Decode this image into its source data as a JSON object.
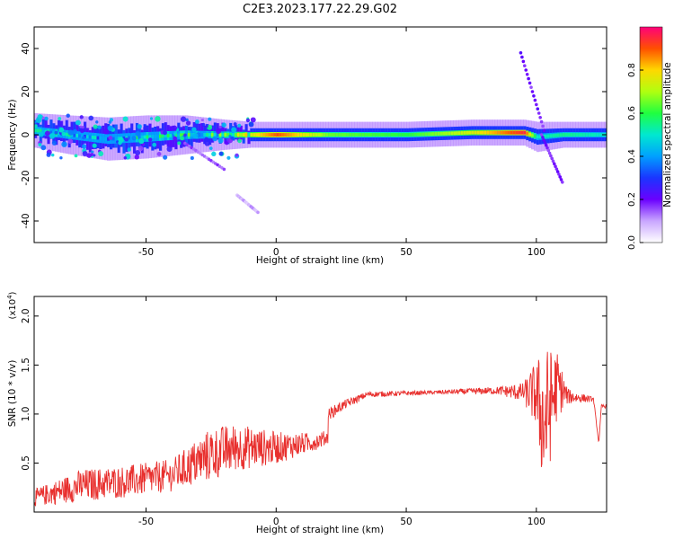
{
  "figure_title": "C2E3.2023.177.22.29.G02",
  "chart_data": [
    {
      "type": "heatmap",
      "xlabel": "Height of straight line (km)",
      "ylabel": "Frequency (Hz)",
      "xlim": [
        -93,
        127
      ],
      "ylim": [
        -50,
        50
      ],
      "xticks": [
        -50,
        0,
        50,
        100
      ],
      "xtick_labels": [
        "-50",
        "0",
        "50",
        "100"
      ],
      "yticks": [
        -40,
        -20,
        0,
        20,
        40
      ],
      "ytick_labels": [
        "-40",
        "-20",
        "0",
        "20",
        "40"
      ],
      "colorbar": {
        "label": "Normalized spectral amplitude",
        "range": [
          0,
          1
        ],
        "ticks": [
          0.0,
          0.2,
          0.4,
          0.6,
          0.8
        ],
        "tick_labels": [
          "0.0",
          "0.2",
          "0.4",
          "0.6",
          "0.8"
        ]
      },
      "band": [
        {
          "x": -93,
          "halfwidth": 7,
          "center": 2,
          "amp": 0.55
        },
        {
          "x": -80,
          "halfwidth": 8,
          "center": 0,
          "amp": 0.5
        },
        {
          "x": -65,
          "halfwidth": 9,
          "center": -2,
          "amp": 0.45
        },
        {
          "x": -50,
          "halfwidth": 9,
          "center": -1,
          "amp": 0.5
        },
        {
          "x": -35,
          "halfwidth": 8,
          "center": 0,
          "amp": 0.55
        },
        {
          "x": -20,
          "halfwidth": 6,
          "center": 0,
          "amp": 0.6
        },
        {
          "x": -10,
          "halfwidth": 5,
          "center": 0,
          "amp": 0.75
        },
        {
          "x": 0,
          "halfwidth": 5,
          "center": 0,
          "amp": 0.9
        },
        {
          "x": 20,
          "halfwidth": 5,
          "center": 0,
          "amp": 0.65
        },
        {
          "x": 50,
          "halfwidth": 5,
          "center": 0,
          "amp": 0.6
        },
        {
          "x": 75,
          "halfwidth": 5,
          "center": 1,
          "amp": 0.75
        },
        {
          "x": 95,
          "halfwidth": 5,
          "center": 1,
          "amp": 0.95
        },
        {
          "x": 100,
          "halfwidth": 6,
          "center": -1,
          "amp": 0.5
        },
        {
          "x": 110,
          "halfwidth": 5,
          "center": 0,
          "amp": 0.55
        },
        {
          "x": 127,
          "halfwidth": 5,
          "center": 0,
          "amp": 0.5
        }
      ],
      "streaks": [
        {
          "x1": -35,
          "y1": -4,
          "x2": -20,
          "y2": -16,
          "amp": 0.1
        },
        {
          "x1": -15,
          "y1": -28,
          "x2": -7,
          "y2": -36,
          "amp": 0.05
        },
        {
          "x1": 94,
          "y1": 38,
          "x2": 103,
          "y2": 2,
          "amp": 0.15
        },
        {
          "x1": 102,
          "y1": 0,
          "x2": 110,
          "y2": -22,
          "amp": 0.15
        }
      ]
    },
    {
      "type": "line",
      "xlabel": "Height of straight line (km)",
      "ylabel": "SNR (10 * v/v)",
      "y_multiplier_label": "(x10^4)",
      "xlim": [
        -93,
        127
      ],
      "ylim": [
        0,
        2.2
      ],
      "xticks": [
        -50,
        0,
        50,
        100
      ],
      "xtick_labels": [
        "-50",
        "0",
        "50",
        "100"
      ],
      "yticks": [
        0.5,
        1.0,
        1.5,
        2.0
      ],
      "ytick_labels": [
        "0.5",
        "1.0",
        "1.5",
        "2.0"
      ],
      "series": [
        {
          "color": "#e8302e",
          "trend": [
            {
              "x": -93,
              "y": 0.08,
              "noise": 0.08
            },
            {
              "x": -75,
              "y": 0.15,
              "noise": 0.15
            },
            {
              "x": -55,
              "y": 0.22,
              "noise": 0.15
            },
            {
              "x": -40,
              "y": 0.3,
              "noise": 0.15
            },
            {
              "x": -25,
              "y": 0.45,
              "noise": 0.25
            },
            {
              "x": -15,
              "y": 0.6,
              "noise": 0.22
            },
            {
              "x": 0,
              "y": 0.7,
              "noise": 0.15
            },
            {
              "x": 15,
              "y": 0.9,
              "noise": 0.08
            },
            {
              "x": 25,
              "y": 1.08,
              "noise": 0.05
            },
            {
              "x": 35,
              "y": 1.2,
              "noise": 0.03
            },
            {
              "x": 60,
              "y": 1.22,
              "noise": 0.02
            },
            {
              "x": 85,
              "y": 1.24,
              "noise": 0.04
            },
            {
              "x": 95,
              "y": 1.22,
              "noise": 0.1
            },
            {
              "x": 100,
              "y": 1.2,
              "noise": 0.35
            },
            {
              "x": 103,
              "y": 0.9,
              "noise": 0.8
            },
            {
              "x": 108,
              "y": 1.3,
              "noise": 0.35
            },
            {
              "x": 112,
              "y": 1.18,
              "noise": 0.08
            },
            {
              "x": 122,
              "y": 1.15,
              "noise": 0.02
            },
            {
              "x": 124,
              "y": 0.7,
              "noise": 0.0
            },
            {
              "x": 125,
              "y": 1.08,
              "noise": 0.02
            },
            {
              "x": 127,
              "y": 1.08,
              "noise": 0.02
            }
          ]
        }
      ]
    }
  ]
}
